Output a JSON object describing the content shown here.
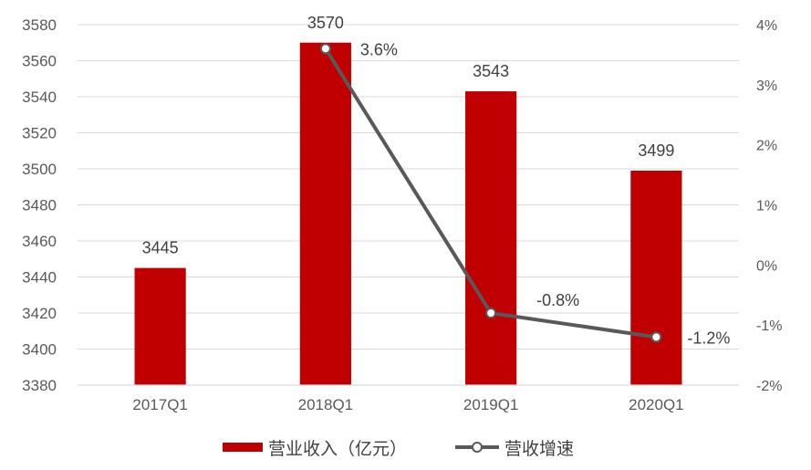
{
  "chart_data": {
    "type": "bar",
    "categories": [
      "2017Q1",
      "2018Q1",
      "2019Q1",
      "2020Q1"
    ],
    "series": [
      {
        "name": "营业收入（亿元）",
        "type": "bar",
        "axis": "left",
        "values": [
          3445,
          3570,
          3543,
          3499
        ],
        "labels": [
          "3445",
          "3570",
          "3543",
          "3499"
        ],
        "color": "#C00000"
      },
      {
        "name": "营收增速",
        "type": "line",
        "axis": "right",
        "values": [
          null,
          3.6,
          -0.8,
          -1.2
        ],
        "labels": [
          "",
          "3.6%",
          "-0.8%",
          "-1.2%"
        ],
        "color": "#595959"
      }
    ],
    "ylim": [
      3380,
      3580
    ],
    "yticks": [
      "3580",
      "3560",
      "3540",
      "3520",
      "3500",
      "3480",
      "3460",
      "3440",
      "3420",
      "3400",
      "3380"
    ],
    "y2lim": [
      -2,
      4
    ],
    "y2ticks": [
      "4%",
      "3%",
      "2%",
      "1%",
      "0%",
      "-1%",
      "-2%"
    ],
    "grid": true,
    "legend_position": "bottom"
  }
}
